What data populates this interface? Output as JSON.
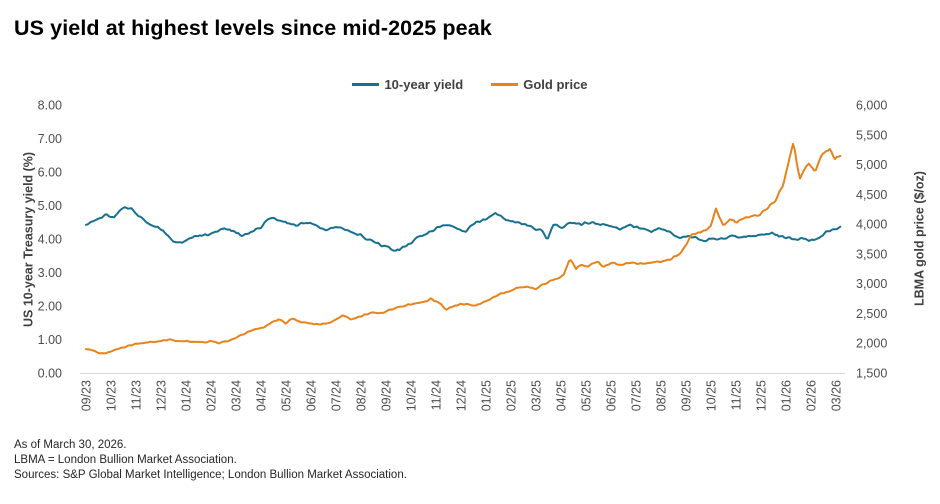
{
  "title": "US yield at highest levels since mid-2025 peak",
  "footnotes": [
    "As of March 30, 2026.",
    "LBMA = London Bullion Market Association.",
    "Sources: S&P Global Market Intelligence; London Bullion Market Association."
  ],
  "colors": {
    "yield_line": "#17708F",
    "gold_line": "#E8821C",
    "axis_line": "#D9D9D9",
    "tick_label": "#4D4D4D",
    "axis_title": "#404040",
    "title_text": "#000000"
  },
  "chart_data": {
    "type": "line",
    "title": "US yield at highest levels since mid-2025 peak",
    "grid": "off",
    "legend_position": "top-center",
    "x_tick_labels": [
      "09/23",
      "10/23",
      "11/23",
      "12/23",
      "01/24",
      "02/24",
      "03/24",
      "04/24",
      "05/24",
      "06/24",
      "07/24",
      "08/24",
      "09/24",
      "10/24",
      "11/24",
      "12/24",
      "01/25",
      "02/25",
      "03/25",
      "04/25",
      "05/25",
      "06/25",
      "07/25",
      "08/25",
      "09/25",
      "10/25",
      "11/25",
      "12/25",
      "01/26",
      "02/26",
      "03/26"
    ],
    "left_axis": {
      "label": "US 10-year Treasury yield (%)",
      "min": 0,
      "max": 8,
      "tick_step": 1,
      "tick_labels": [
        "0.00",
        "1.00",
        "2.00",
        "3.00",
        "4.00",
        "5.00",
        "6.00",
        "7.00",
        "8.00"
      ]
    },
    "right_axis": {
      "label": "LBMA gold price ($/oz)",
      "min": 1500,
      "max": 6000,
      "tick_step": 500,
      "tick_labels": [
        "1,500",
        "2,000",
        "2,500",
        "3,000",
        "3,500",
        "4,000",
        "4,500",
        "5,000",
        "5,500",
        "6,000"
      ]
    },
    "series": [
      {
        "name": "10-year yield",
        "axis": "left",
        "color": "#17708F",
        "unit": "%",
        "points": [
          [
            0,
            4.42
          ],
          [
            0.4,
            4.58
          ],
          [
            0.8,
            4.72
          ],
          [
            1.1,
            4.62
          ],
          [
            1.5,
            4.96
          ],
          [
            1.9,
            4.86
          ],
          [
            2.3,
            4.55
          ],
          [
            2.7,
            4.4
          ],
          [
            3.1,
            4.25
          ],
          [
            3.5,
            3.92
          ],
          [
            3.9,
            3.88
          ],
          [
            4.3,
            4.08
          ],
          [
            4.7,
            4.1
          ],
          [
            5.1,
            4.18
          ],
          [
            5.5,
            4.3
          ],
          [
            5.9,
            4.25
          ],
          [
            6.2,
            4.1
          ],
          [
            6.6,
            4.22
          ],
          [
            7.0,
            4.35
          ],
          [
            7.4,
            4.65
          ],
          [
            7.7,
            4.55
          ],
          [
            8.0,
            4.5
          ],
          [
            8.4,
            4.42
          ],
          [
            8.8,
            4.5
          ],
          [
            9.2,
            4.42
          ],
          [
            9.6,
            4.25
          ],
          [
            10.0,
            4.38
          ],
          [
            10.4,
            4.28
          ],
          [
            10.8,
            4.18
          ],
          [
            11.2,
            4.02
          ],
          [
            11.6,
            3.88
          ],
          [
            12.0,
            3.75
          ],
          [
            12.4,
            3.65
          ],
          [
            12.8,
            3.78
          ],
          [
            13.3,
            4.05
          ],
          [
            13.8,
            4.22
          ],
          [
            14.2,
            4.38
          ],
          [
            14.5,
            4.44
          ],
          [
            14.8,
            4.3
          ],
          [
            15.2,
            4.24
          ],
          [
            15.6,
            4.5
          ],
          [
            16.0,
            4.58
          ],
          [
            16.4,
            4.78
          ],
          [
            16.8,
            4.6
          ],
          [
            17.2,
            4.5
          ],
          [
            17.6,
            4.42
          ],
          [
            18.0,
            4.3
          ],
          [
            18.3,
            4.22
          ],
          [
            18.45,
            3.92
          ],
          [
            18.7,
            4.45
          ],
          [
            19.0,
            4.32
          ],
          [
            19.4,
            4.5
          ],
          [
            19.8,
            4.44
          ],
          [
            20.2,
            4.5
          ],
          [
            20.6,
            4.44
          ],
          [
            21.0,
            4.38
          ],
          [
            21.4,
            4.3
          ],
          [
            21.8,
            4.4
          ],
          [
            22.2,
            4.32
          ],
          [
            22.6,
            4.24
          ],
          [
            23.0,
            4.3
          ],
          [
            23.4,
            4.18
          ],
          [
            23.7,
            4.02
          ],
          [
            24.2,
            4.08
          ],
          [
            24.7,
            3.92
          ],
          [
            25.0,
            4.02
          ],
          [
            25.4,
            4.0
          ],
          [
            25.8,
            4.08
          ],
          [
            26.2,
            4.04
          ],
          [
            26.6,
            4.1
          ],
          [
            27.0,
            4.14
          ],
          [
            27.4,
            4.18
          ],
          [
            27.8,
            4.08
          ],
          [
            28.2,
            4.02
          ],
          [
            28.7,
            4.0
          ],
          [
            29.0,
            3.96
          ],
          [
            29.3,
            4.06
          ],
          [
            29.7,
            4.24
          ],
          [
            30.2,
            4.36
          ]
        ]
      },
      {
        "name": "Gold price",
        "axis": "right",
        "color": "#E8821C",
        "unit": "$/oz",
        "points": [
          [
            0,
            1905
          ],
          [
            0.3,
            1870
          ],
          [
            0.6,
            1825
          ],
          [
            0.9,
            1845
          ],
          [
            1.2,
            1900
          ],
          [
            1.6,
            1945
          ],
          [
            2.0,
            1985
          ],
          [
            2.4,
            2010
          ],
          [
            2.8,
            2025
          ],
          [
            3.1,
            2045
          ],
          [
            3.4,
            2065
          ],
          [
            3.7,
            2030
          ],
          [
            4.0,
            2035
          ],
          [
            4.4,
            2025
          ],
          [
            4.7,
            2015
          ],
          [
            5.0,
            2035
          ],
          [
            5.3,
            2000
          ],
          [
            5.7,
            2045
          ],
          [
            6.0,
            2090
          ],
          [
            6.4,
            2170
          ],
          [
            6.8,
            2240
          ],
          [
            7.1,
            2260
          ],
          [
            7.4,
            2350
          ],
          [
            7.7,
            2395
          ],
          [
            8.0,
            2335
          ],
          [
            8.3,
            2425
          ],
          [
            8.6,
            2355
          ],
          [
            9.0,
            2330
          ],
          [
            9.3,
            2315
          ],
          [
            9.7,
            2335
          ],
          [
            10.0,
            2400
          ],
          [
            10.3,
            2465
          ],
          [
            10.6,
            2405
          ],
          [
            11.0,
            2455
          ],
          [
            11.4,
            2510
          ],
          [
            11.8,
            2505
          ],
          [
            12.2,
            2565
          ],
          [
            12.6,
            2625
          ],
          [
            13.0,
            2655
          ],
          [
            13.4,
            2685
          ],
          [
            13.8,
            2745
          ],
          [
            14.1,
            2690
          ],
          [
            14.4,
            2570
          ],
          [
            14.8,
            2645
          ],
          [
            15.2,
            2660
          ],
          [
            15.6,
            2630
          ],
          [
            16.0,
            2720
          ],
          [
            16.4,
            2790
          ],
          [
            16.8,
            2860
          ],
          [
            17.2,
            2920
          ],
          [
            17.6,
            2950
          ],
          [
            18.0,
            2920
          ],
          [
            18.4,
            3010
          ],
          [
            18.8,
            3090
          ],
          [
            19.1,
            3140
          ],
          [
            19.35,
            3425
          ],
          [
            19.6,
            3245
          ],
          [
            19.85,
            3315
          ],
          [
            20.1,
            3290
          ],
          [
            20.4,
            3380
          ],
          [
            20.7,
            3290
          ],
          [
            21.0,
            3350
          ],
          [
            21.4,
            3325
          ],
          [
            21.8,
            3340
          ],
          [
            22.2,
            3335
          ],
          [
            22.6,
            3355
          ],
          [
            23.0,
            3370
          ],
          [
            23.4,
            3410
          ],
          [
            23.8,
            3520
          ],
          [
            24.0,
            3640
          ],
          [
            24.2,
            3800
          ],
          [
            24.5,
            3860
          ],
          [
            24.8,
            3910
          ],
          [
            25.0,
            3990
          ],
          [
            25.2,
            4255
          ],
          [
            25.5,
            3955
          ],
          [
            25.75,
            4090
          ],
          [
            26.0,
            4020
          ],
          [
            26.3,
            4100
          ],
          [
            26.6,
            4120
          ],
          [
            27.0,
            4180
          ],
          [
            27.3,
            4290
          ],
          [
            27.6,
            4420
          ],
          [
            27.9,
            4680
          ],
          [
            28.1,
            5060
          ],
          [
            28.3,
            5370
          ],
          [
            28.55,
            4760
          ],
          [
            28.9,
            5040
          ],
          [
            29.15,
            4870
          ],
          [
            29.45,
            5170
          ],
          [
            29.75,
            5250
          ],
          [
            29.95,
            5080
          ],
          [
            30.2,
            5170
          ]
        ]
      }
    ]
  }
}
